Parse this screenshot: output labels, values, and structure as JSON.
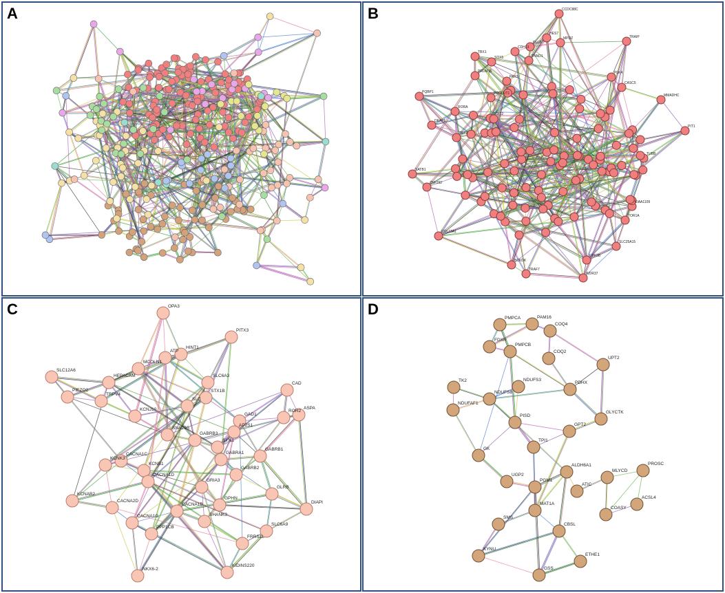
{
  "panels": [
    {
      "label": "A"
    },
    {
      "label": "B",
      "nodes": [
        "CCDC88C",
        "TRAIP",
        "HES7",
        "MPDZ",
        "DLL3",
        "CDH13",
        "TNND1",
        "TBX1",
        "SOX5",
        "PRDM16",
        "PAX3",
        "PLK4",
        "CASC5",
        "POGLUT1",
        "MMADHC",
        "PQBP1",
        "RORA",
        "DEAF1",
        "TCF12",
        "TET3",
        "PIT1",
        "SATB1",
        "ZNF292",
        "SLC25A15",
        "UPF3B",
        "TRAF7",
        "BCKDK",
        "WDR37",
        "COL13A1",
        "TUBB",
        "TOR1A",
        "KIAA1109"
      ]
    },
    {
      "label": "C",
      "nodes": [
        "OPA3",
        "PITX3",
        "HINT1",
        "ATP",
        "MCOLN1",
        "SLC12A6",
        "HEPACAM",
        "SLC6A3",
        "CAD",
        "PIEZO2",
        "TRPV4",
        "STX1B",
        "SLC",
        "ASPA",
        "ROR2",
        "KCNJ10",
        "GAD1",
        "AP2S1",
        "SNAP25",
        "GABRB3",
        "GABRB1",
        "SYN1",
        "KCNK3",
        "CACNA1C",
        "GABRA1",
        "KCNB1",
        "GABRB2",
        "GRIA3",
        "KCNAB2",
        "CACNA2D",
        "CACNA1G",
        "CACNA1B",
        "PPP1CB",
        "SHANK3",
        "GPHN",
        "GLRB",
        "SLC6A9",
        "DIAPI",
        "FRRS1L",
        "KIDINS220",
        "NKX6-2",
        "CACNA1D"
      ]
    },
    {
      "label": "D",
      "nodes": [
        "PMPCA",
        "PAM16",
        "COQ4",
        "FDXR",
        "PMPCB",
        "COQ2",
        "UPT2",
        "TK2",
        "NDUFS3",
        "PDHX",
        "NDUFAF1",
        "NDUFS8",
        "GLYCTK",
        "PISD",
        "GPT2",
        "TPI1",
        "GK",
        "ALDH6A1",
        "PROSC",
        "MLYCD",
        "UGP2",
        "PGM1",
        "ATIC",
        "ACSL4",
        "MAT1A",
        "COASY",
        "SMS",
        "CBSL",
        "KYNU",
        "ETHE1",
        "GSS"
      ]
    }
  ]
}
